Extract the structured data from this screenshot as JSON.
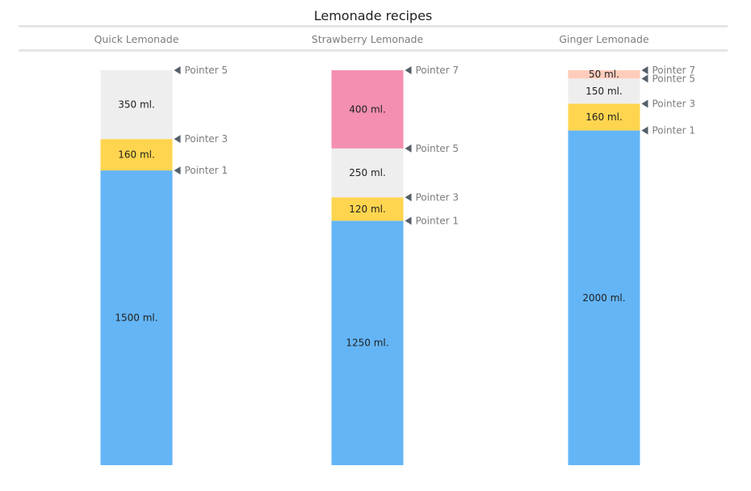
{
  "chart_data": {
    "type": "bar",
    "title": "Lemonade recipes",
    "unit_suffix": " ml.",
    "colors": {
      "water": "#64b5f6",
      "sugar": "#ffd54f",
      "lemon_juice": "#eeeeee",
      "strawberry": "#f48fb1",
      "ginger": "#ffccbc",
      "header_line": "#e5e5e5",
      "pointer": "#545f69"
    },
    "columns": [
      {
        "name": "Quick Lemonade",
        "segments": [
          {
            "value": 1500,
            "color_key": "water",
            "pointer": "Pointer 1"
          },
          {
            "value": 160,
            "color_key": "sugar",
            "pointer": "Pointer 3"
          },
          {
            "value": 350,
            "color_key": "lemon_juice",
            "pointer": "Pointer 5"
          }
        ]
      },
      {
        "name": "Strawberry Lemonade",
        "segments": [
          {
            "value": 1250,
            "color_key": "water",
            "pointer": "Pointer 1"
          },
          {
            "value": 120,
            "color_key": "sugar",
            "pointer": "Pointer 3"
          },
          {
            "value": 250,
            "color_key": "lemon_juice",
            "pointer": "Pointer 5"
          },
          {
            "value": 400,
            "color_key": "strawberry",
            "pointer": "Pointer 7"
          }
        ]
      },
      {
        "name": "Ginger Lemonade",
        "segments": [
          {
            "value": 2000,
            "color_key": "water",
            "pointer": "Pointer 1"
          },
          {
            "value": 160,
            "color_key": "sugar",
            "pointer": "Pointer 3"
          },
          {
            "value": 150,
            "color_key": "lemon_juice",
            "pointer": "Pointer 5"
          },
          {
            "value": 50,
            "color_key": "ginger",
            "pointer": "Pointer 7"
          }
        ]
      }
    ]
  }
}
